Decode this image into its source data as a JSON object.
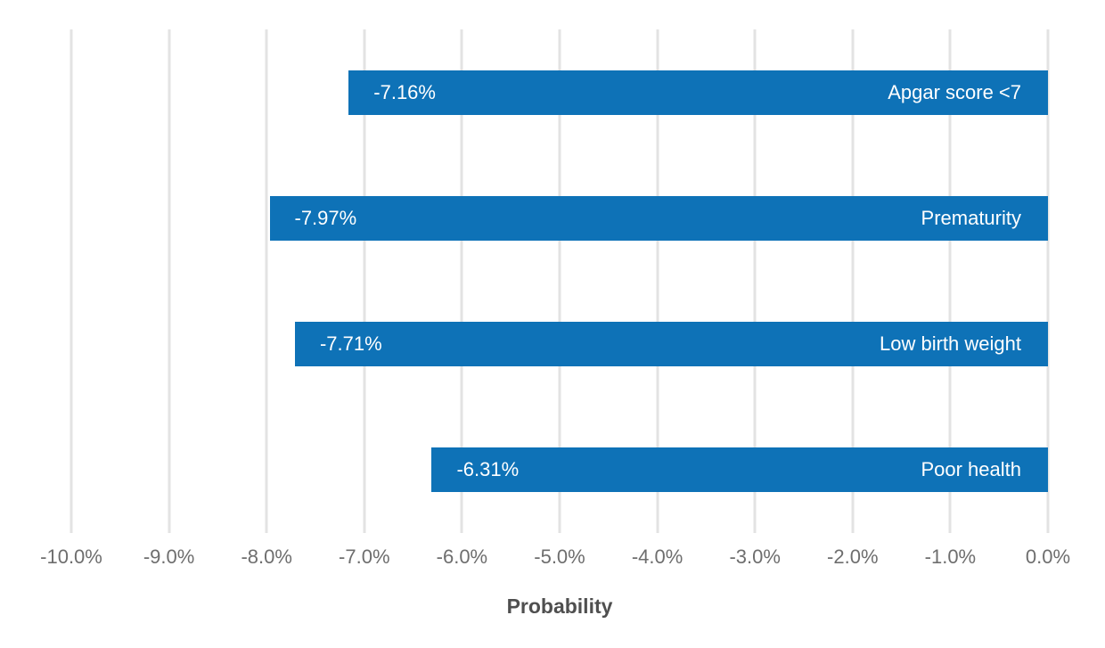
{
  "chart_data": {
    "type": "bar",
    "orientation": "horizontal",
    "title": "",
    "xlabel": "Probability",
    "ylabel": "",
    "categories": [
      "Apgar score <7",
      "Prematurity",
      "Low birth weight",
      "Poor health"
    ],
    "values": [
      -7.16,
      -7.97,
      -7.71,
      -6.31
    ],
    "value_labels": [
      "-7.16%",
      "-7.97%",
      "-7.71%",
      "-6.31%"
    ],
    "xlim": [
      -10,
      0
    ],
    "x_ticks": [
      "-10.0%",
      "-9.0%",
      "-8.0%",
      "-7.0%",
      "-6.0%",
      "-5.0%",
      "-4.0%",
      "-3.0%",
      "-2.0%",
      "-1.0%",
      "0.0%"
    ],
    "grid": "vertical-only",
    "legend": "none",
    "bar_label_placement": "value inside left end, category inside right end",
    "colors": {
      "bar": "#0E72B7",
      "bar_text": "#ffffff",
      "gridline": "#e3e3e3",
      "tick_label": "#6e6e6e",
      "axis_title": "#4f4f4f",
      "background": "#ffffff"
    }
  }
}
